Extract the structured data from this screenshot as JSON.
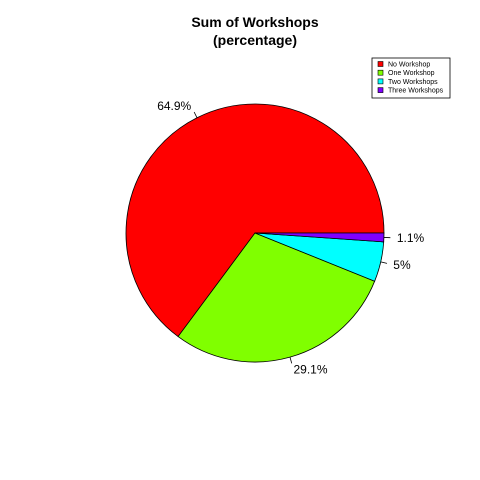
{
  "chart_data": {
    "type": "pie",
    "title": [
      "Sum of Workshops",
      "(percentage)"
    ],
    "slices": [
      {
        "name": "No Workshop",
        "value": 64.9,
        "label": "64.9%",
        "color": "#ff0000"
      },
      {
        "name": "One Workshop",
        "value": 29.1,
        "label": "29.1%",
        "color": "#80ff00"
      },
      {
        "name": "Two Workshops",
        "value": 5.0,
        "label": "5%",
        "color": "#00ffff"
      },
      {
        "name": "Three Workshops",
        "value": 1.1,
        "label": "1.1%",
        "color": "#8000ff"
      }
    ],
    "start_angle_deg": 0,
    "direction": "counterclockwise",
    "legend_position": "top-right"
  }
}
